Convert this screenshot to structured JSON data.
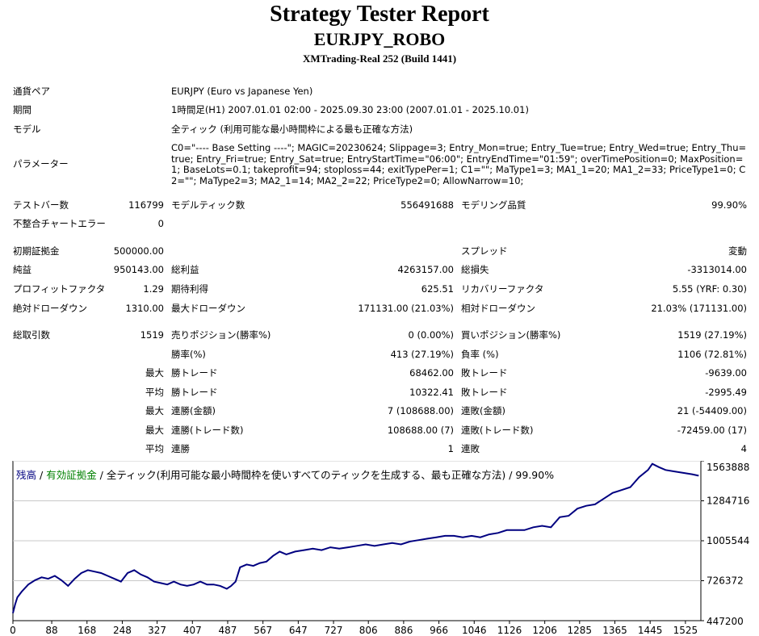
{
  "header": {
    "title": "Strategy Tester Report",
    "subtitle": "EURJPY_ROBO",
    "build": "XMTrading-Real 252 (Build 1441)"
  },
  "info": {
    "pair_label": "通貨ペア",
    "pair_value": "EURJPY (Euro vs Japanese Yen)",
    "period_label": "期間",
    "period_value": "1時間足(H1) 2007.01.01 02:00 - 2025.09.30 23:00 (2007.01.01 - 2025.10.01)",
    "model_label": "モデル",
    "model_value": "全ティック (利用可能な最小時間枠による最も正確な方法)",
    "params_label": "パラメーター",
    "params_value": "C0=\"---- Base Setting ----\"; MAGIC=20230624; Slippage=3; Entry_Mon=true; Entry_Tue=true; Entry_Wed=true; Entry_Thu=true; Entry_Fri=true; Entry_Sat=true; EntryStartTime=\"06:00\"; EntryEndTime=\"01:59\"; overTimePosition=0; MaxPosition=1; BaseLots=0.1; takeprofit=94; stoploss=44; exitTypePer=1; C1=\"\"; MaType1=3; MA1_1=20; MA1_2=33; PriceType1=0; C2=\"\"; MaType2=3; MA2_1=14; MA2_2=22; PriceType2=0; AllowNarrow=10;"
  },
  "stats": {
    "bars_label": "テストバー数",
    "bars_value": "116799",
    "ticks_label": "モデルティック数",
    "ticks_value": "556491688",
    "quality_label": "モデリング品質",
    "quality_value": "99.90%",
    "mismatch_label": "不整合チャートエラー",
    "mismatch_value": "0",
    "deposit_label": "初期証拠金",
    "deposit_value": "500000.00",
    "spread_label": "スプレッド",
    "spread_value": "変動",
    "net_label": "純益",
    "net_value": "950143.00",
    "gross_profit_label": "総利益",
    "gross_profit_value": "4263157.00",
    "gross_loss_label": "総損失",
    "gross_loss_value": "-3313014.00",
    "pf_label": "プロフィットファクタ",
    "pf_value": "1.29",
    "expected_label": "期待利得",
    "expected_value": "625.51",
    "recovery_label": "リカバリーファクタ",
    "recovery_value": "5.55 (YRF: 0.30)",
    "abs_dd_label": "絶対ドローダウン",
    "abs_dd_value": "1310.00",
    "max_dd_label": "最大ドローダウン",
    "max_dd_value": "171131.00 (21.03%)",
    "rel_dd_label": "相対ドローダウン",
    "rel_dd_value": "21.03% (171131.00)",
    "trades_label": "総取引数",
    "trades_value": "1519",
    "short_label": "売りポジション(勝率%)",
    "short_value": "0 (0.00%)",
    "long_label": "買いポジション(勝率%)",
    "long_value": "1519 (27.19%)",
    "winrate_label": "勝率(%)",
    "winrate_value": "413 (27.19%)",
    "lossrate_label": "負率 (%)",
    "lossrate_value": "1106 (72.81%)",
    "max_label": "最大",
    "avg_label": "平均",
    "win_trade_label": "勝トレード",
    "win_trade_max": "68462.00",
    "win_trade_avg": "10322.41",
    "loss_trade_label": "敗トレード",
    "loss_trade_max": "-9639.00",
    "loss_trade_avg": "-2995.49",
    "consec_win_amt_label": "連勝(金額)",
    "consec_win_amt_value": "7 (108688.00)",
    "consec_loss_amt_label": "連敗(金額)",
    "consec_loss_amt_value": "21 (-54409.00)",
    "consec_win_cnt_label": "連勝(トレード数)",
    "consec_win_cnt_value": "108688.00 (7)",
    "consec_loss_cnt_label": "連敗(トレード数)",
    "consec_loss_cnt_value": "-72459.00 (17)",
    "avg_consec_win_label": "連勝",
    "avg_consec_win_value": "1",
    "avg_consec_loss_label": "連敗",
    "avg_consec_loss_value": "4"
  },
  "chart_caption": {
    "balance": "残高",
    "sep1": " / ",
    "equity": "有効証拠金",
    "sep2": " / ",
    "model": "全ティック(利用可能な最小時間枠を使いすべてのティックを生成する、最も正確な方法) / 99.90%"
  },
  "colors": {
    "balance": "#000080",
    "equity": "#008000",
    "grid": "#c8c8c8"
  },
  "chart_data": {
    "type": "line",
    "x_ticks": [
      0,
      88,
      168,
      248,
      327,
      407,
      487,
      567,
      647,
      727,
      806,
      886,
      966,
      1046,
      1126,
      1206,
      1285,
      1365,
      1445,
      1525
    ],
    "y_ticks": [
      447200,
      726372,
      1005544,
      1284716,
      1563888
    ],
    "xlim": [
      0,
      1560
    ],
    "ylim": [
      447200,
      1563888
    ],
    "series": [
      {
        "name": "残高",
        "x": [
          0,
          5,
          10,
          20,
          35,
          50,
          65,
          80,
          95,
          110,
          125,
          140,
          155,
          170,
          185,
          200,
          215,
          230,
          245,
          260,
          275,
          290,
          305,
          320,
          335,
          350,
          365,
          380,
          395,
          410,
          425,
          440,
          455,
          470,
          485,
          495,
          505,
          515,
          530,
          545,
          560,
          575,
          590,
          605,
          620,
          640,
          660,
          680,
          700,
          720,
          740,
          760,
          780,
          800,
          820,
          840,
          860,
          880,
          900,
          920,
          940,
          960,
          980,
          1000,
          1020,
          1040,
          1060,
          1080,
          1100,
          1120,
          1140,
          1160,
          1180,
          1200,
          1220,
          1240,
          1260,
          1280,
          1300,
          1320,
          1340,
          1360,
          1380,
          1400,
          1420,
          1440,
          1450,
          1465,
          1480,
          1500,
          1520,
          1540,
          1555
        ],
        "y": [
          500000,
          560000,
          610000,
          650000,
          700000,
          730000,
          750000,
          740000,
          760000,
          730000,
          690000,
          740000,
          780000,
          800000,
          790000,
          780000,
          760000,
          740000,
          720000,
          780000,
          800000,
          770000,
          750000,
          720000,
          710000,
          700000,
          720000,
          700000,
          690000,
          700000,
          720000,
          700000,
          700000,
          690000,
          670000,
          690000,
          720000,
          820000,
          840000,
          830000,
          850000,
          860000,
          900000,
          930000,
          910000,
          930000,
          940000,
          950000,
          940000,
          960000,
          950000,
          960000,
          970000,
          980000,
          970000,
          980000,
          990000,
          980000,
          1000000,
          1010000,
          1020000,
          1030000,
          1040000,
          1040000,
          1030000,
          1040000,
          1030000,
          1050000,
          1060000,
          1080000,
          1080000,
          1080000,
          1100000,
          1110000,
          1100000,
          1170000,
          1180000,
          1230000,
          1250000,
          1260000,
          1300000,
          1340000,
          1360000,
          1380000,
          1450000,
          1500000,
          1543000,
          1520000,
          1500000,
          1490000,
          1480000,
          1470000,
          1460000
        ]
      }
    ]
  }
}
